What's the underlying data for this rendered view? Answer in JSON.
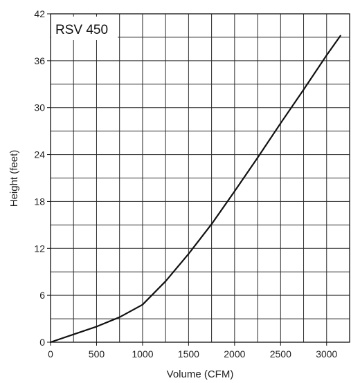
{
  "chart_data": {
    "type": "line",
    "title": "RSV 450",
    "xlabel": "Volume (CFM)",
    "ylabel": "Height (feet)",
    "xlim": [
      0,
      3250
    ],
    "ylim": [
      0,
      42
    ],
    "x_ticks": [
      0,
      500,
      1000,
      1500,
      2000,
      2500,
      3000
    ],
    "y_ticks": [
      0,
      6,
      12,
      18,
      24,
      30,
      36,
      42
    ],
    "x_grid_step": 250,
    "y_grid_step": 3,
    "grid": true,
    "series": [
      {
        "x": [
          0,
          250,
          500,
          750,
          1000,
          1250,
          1500,
          1750,
          2000,
          2250,
          2500,
          2750,
          3000,
          3150
        ],
        "y": [
          0,
          1,
          2,
          3.2,
          4.8,
          7.8,
          11.3,
          15.1,
          19.3,
          23.6,
          28.0,
          32.3,
          36.7,
          39.2
        ]
      }
    ]
  },
  "colors": {
    "line": "#111111",
    "grid": "#2a2a2a",
    "background": "#ffffff"
  }
}
